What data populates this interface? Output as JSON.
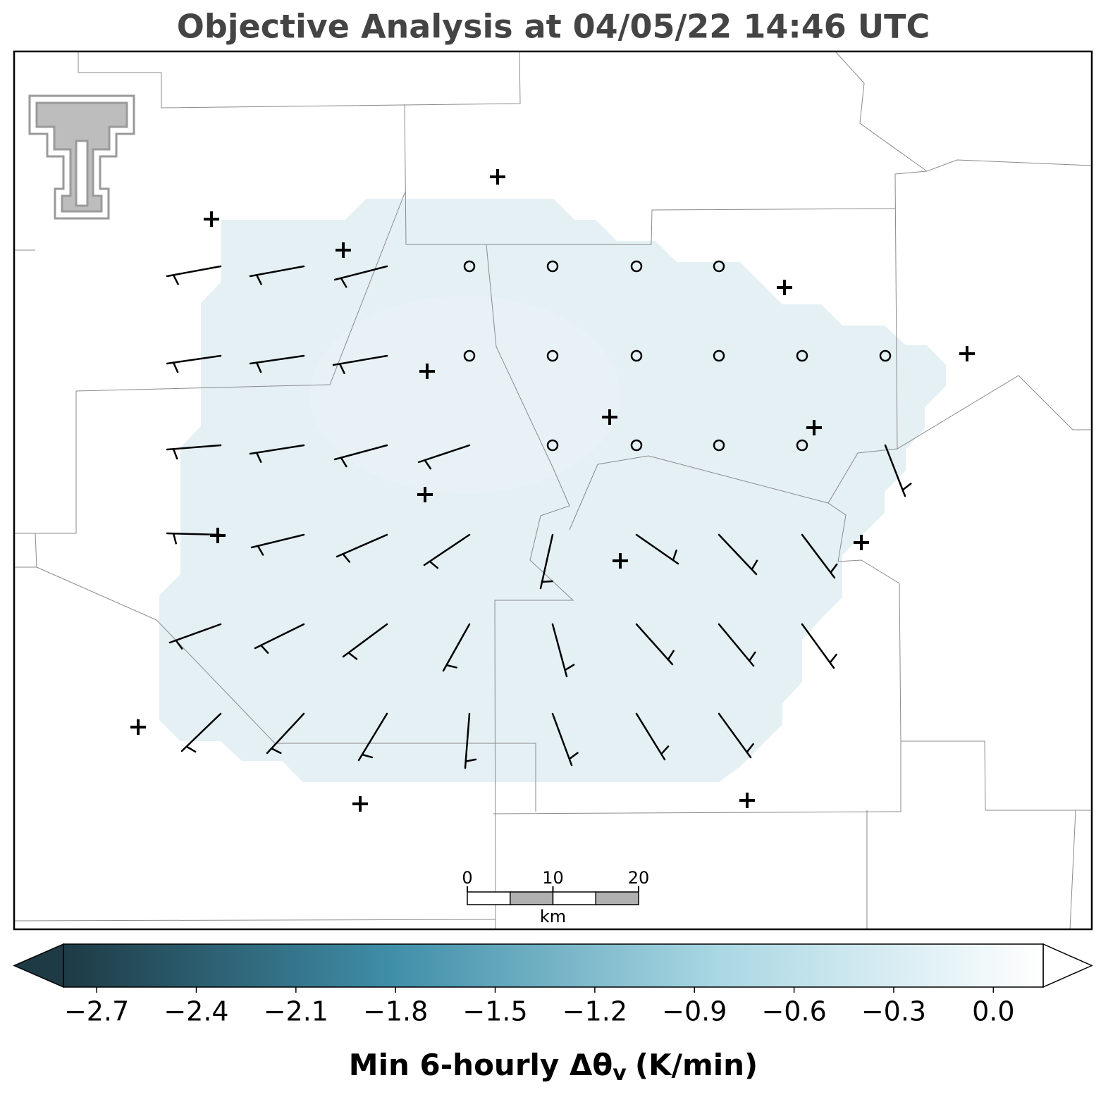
{
  "title": "Objective Analysis at 04/05/22 14:46 UTC",
  "scale_bar": {
    "ticks": [
      0,
      10,
      20
    ],
    "unit": "km"
  },
  "colorbar": {
    "label_main": "Min 6-hourly Δθ",
    "label_sub": "v",
    "label_unit": "(K/min)",
    "lim": [
      -2.8,
      0.15
    ],
    "colors": [
      "#1e3a45",
      "#3f8ea8",
      "#a9d7e3",
      "#ffffff"
    ],
    "ticks": [
      {
        "value": -2.7,
        "label": "−2.7"
      },
      {
        "value": -2.4,
        "label": "−2.4"
      },
      {
        "value": -2.1,
        "label": "−2.1"
      },
      {
        "value": -1.8,
        "label": "−1.8"
      },
      {
        "value": -1.5,
        "label": "−1.5"
      },
      {
        "value": -1.2,
        "label": "−1.2"
      },
      {
        "value": -0.9,
        "label": "−0.9"
      },
      {
        "value": -0.6,
        "label": "−0.6"
      },
      {
        "value": -0.3,
        "label": "−0.3"
      },
      {
        "value": 0.0,
        "label": "0.0"
      }
    ]
  }
}
